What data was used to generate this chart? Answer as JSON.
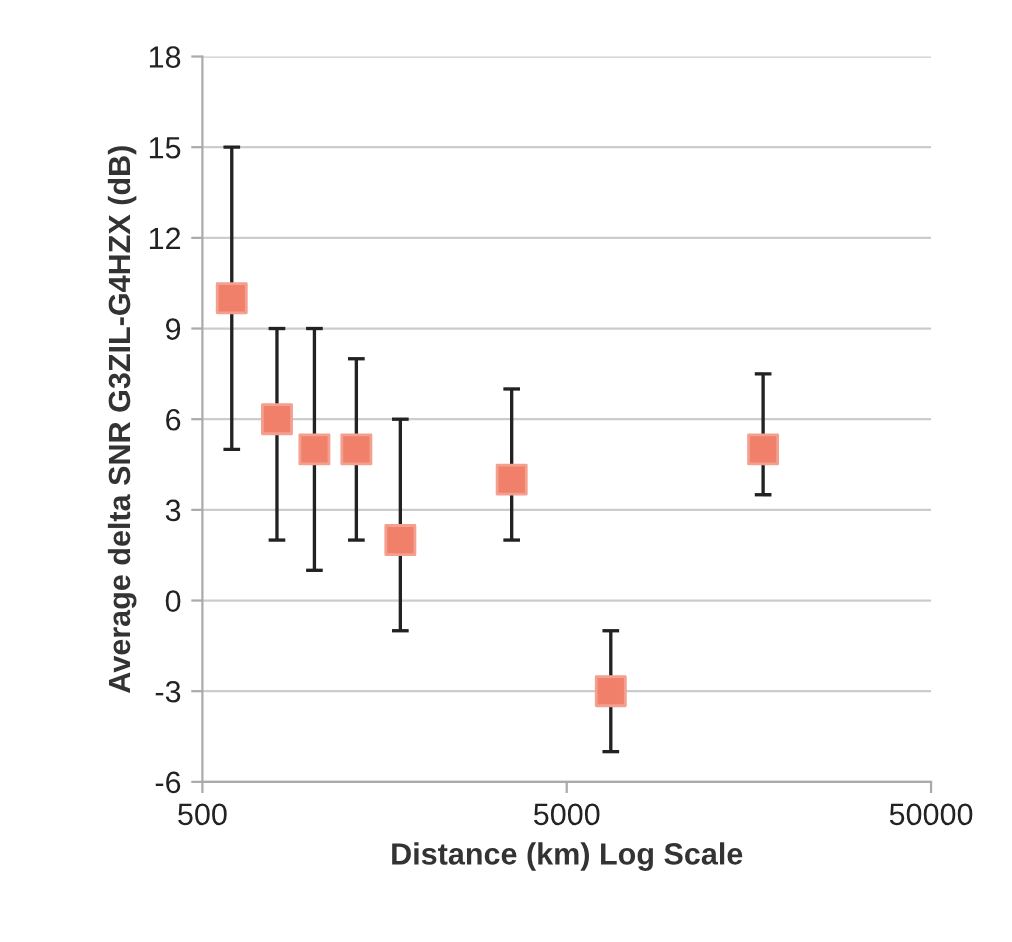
{
  "chart_data": {
    "type": "scatter",
    "xlabel": "Distance (km) Log Scale",
    "ylabel": "Average delta SNR G3ZIL-G4HZX (dB)",
    "x": [
      602,
      801,
      1015,
      1323,
      1747,
      3531,
      6606,
      17300
    ],
    "values": [
      10,
      6,
      5,
      5,
      2,
      4,
      -3,
      5
    ],
    "errors": [
      [
        5,
        15
      ],
      [
        2,
        9
      ],
      [
        1,
        9
      ],
      [
        2,
        8
      ],
      [
        -1,
        6
      ],
      [
        2,
        7
      ],
      [
        -5,
        -1
      ],
      [
        3.5,
        7.5
      ]
    ],
    "color": "#f0806a",
    "marker": "square",
    "log": "x",
    "xlim": [
      500,
      50000
    ],
    "xticks": [
      500,
      5000,
      50000
    ],
    "ylim": [
      -6,
      18
    ],
    "yticks": [
      -6,
      -3,
      0,
      3,
      6,
      9,
      12,
      15,
      18
    ],
    "grid": "y"
  }
}
